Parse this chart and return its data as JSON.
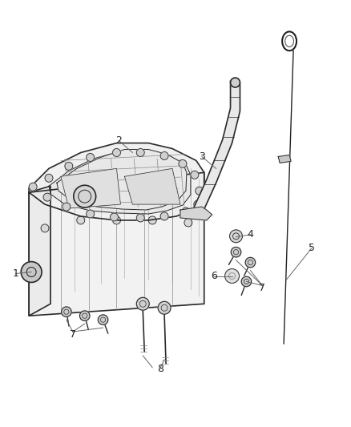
{
  "background_color": "#ffffff",
  "figsize": [
    4.38,
    5.33
  ],
  "dpi": 100,
  "line_color": "#555555",
  "dark_line": "#2a2a2a",
  "light_line": "#888888",
  "label_color": "#333333",
  "pan_outline_color": "#333333",
  "pan_fill": "#f5f5f5",
  "pan_inner_fill": "#eeeeee"
}
